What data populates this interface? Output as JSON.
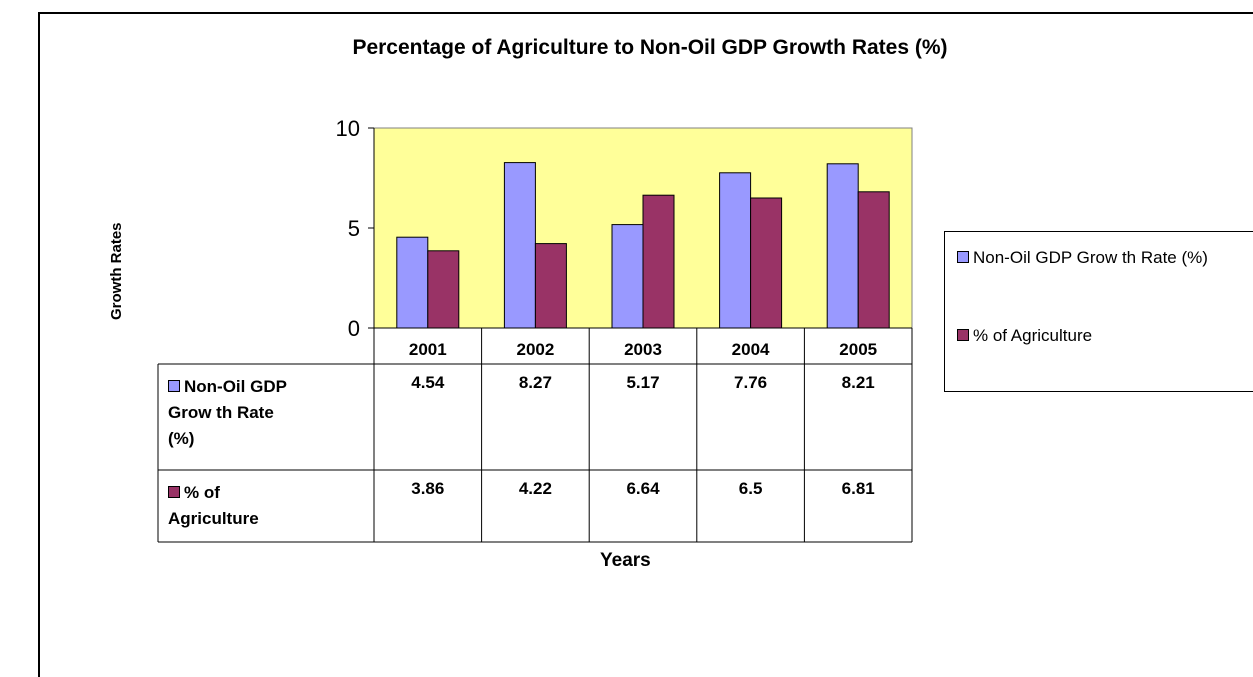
{
  "chart_data": {
    "type": "bar",
    "title": "Percentage of Agriculture to Non-Oil GDP Growth Rates (%)",
    "xlabel": "Years",
    "ylabel": "Growth Rates",
    "categories": [
      "2001",
      "2002",
      "2003",
      "2004",
      "2005"
    ],
    "ylim": [
      0,
      10
    ],
    "yticks": [
      "0",
      "5",
      "10"
    ],
    "legend_position": "right",
    "plot_background": "#ffff99",
    "series": [
      {
        "name": "Non-Oil GDP Grow th Rate (%)",
        "table_label_lines": [
          "Non-Oil GDP",
          "Grow th Rate",
          "(%)"
        ],
        "color": "#9999ff",
        "values": [
          4.54,
          8.27,
          5.17,
          7.76,
          8.21
        ],
        "value_labels": [
          "4.54",
          "8.27",
          "5.17",
          "7.76",
          "8.21"
        ]
      },
      {
        "name": "% of Agriculture",
        "table_label_lines": [
          "% of",
          "Agriculture"
        ],
        "color": "#993366",
        "values": [
          3.86,
          4.22,
          6.64,
          6.5,
          6.81
        ],
        "value_labels": [
          "3.86",
          "4.22",
          "6.64",
          "6.5",
          "6.81"
        ]
      }
    ]
  }
}
